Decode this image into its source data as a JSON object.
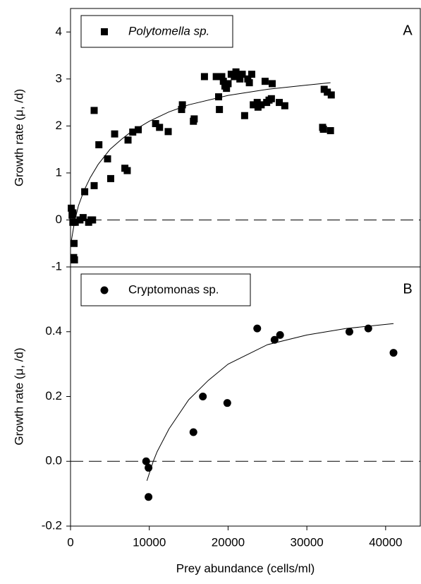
{
  "chart_data": [
    {
      "type": "scatter",
      "panel_label": "A",
      "ylabel": "Growth rate (μ, /d)",
      "xlim": [
        0,
        44400
      ],
      "ylim": [
        -1,
        4.5
      ],
      "yticks": [
        -1,
        0,
        1,
        2,
        3,
        4
      ],
      "reference_line": 0,
      "series": [
        {
          "name": "Polytomella sp.",
          "color": "#000000",
          "marker": "square",
          "x": [
            100,
            200,
            300,
            300,
            400,
            500,
            450,
            600,
            1200,
            1600,
            1800,
            2300,
            2600,
            2800,
            3000,
            3000,
            3600,
            4700,
            5100,
            5600,
            6900,
            7200,
            7300,
            7900,
            8600,
            10800,
            11300,
            12400,
            14100,
            14200,
            15600,
            15700,
            17000,
            18500,
            18800,
            18900,
            19200,
            19400,
            19600,
            19800,
            20000,
            20400,
            20800,
            21000,
            21300,
            21500,
            21800,
            22100,
            22500,
            22700,
            23000,
            23200,
            23700,
            23800,
            24200,
            24700,
            24900,
            25200,
            25500,
            25600,
            26500,
            27200,
            32000,
            32100,
            32200,
            32600,
            33000,
            33100
          ],
          "values": [
            0.25,
            0.1,
            0.15,
            -0.05,
            -0.8,
            -0.85,
            -0.5,
            -0.05,
            0,
            0.05,
            0.6,
            -0.05,
            0,
            0,
            2.33,
            0.73,
            1.6,
            1.3,
            0.88,
            1.83,
            1.1,
            1.05,
            1.7,
            1.87,
            1.92,
            2.05,
            1.97,
            1.88,
            2.35,
            2.45,
            2.1,
            2.15,
            3.05,
            3.05,
            2.62,
            2.35,
            3.05,
            2.95,
            2.85,
            2.8,
            2.9,
            3.1,
            3.05,
            3.15,
            3.05,
            3.0,
            3.1,
            2.22,
            3.0,
            2.92,
            3.1,
            2.45,
            2.5,
            2.4,
            2.45,
            2.95,
            2.5,
            2.55,
            2.58,
            2.9,
            2.5,
            2.43,
            1.97,
            1.93,
            2.78,
            2.72,
            1.9,
            2.66
          ]
        }
      ],
      "fit": {
        "x": [
          0,
          500,
          1000,
          1700,
          2500,
          3500,
          5000,
          6500,
          7500,
          10000,
          12500,
          15000,
          20000,
          25000,
          30000,
          33000
        ],
        "values": [
          -0.55,
          -0.05,
          0.3,
          0.62,
          0.9,
          1.18,
          1.5,
          1.72,
          1.85,
          2.1,
          2.3,
          2.45,
          2.65,
          2.78,
          2.87,
          2.92
        ]
      }
    },
    {
      "type": "scatter",
      "panel_label": "B",
      "ylabel": "Growth rate (μ, /d)",
      "xlabel": "Prey abundance (cells/ml)",
      "xlim": [
        0,
        44400
      ],
      "ylim": [
        -0.2,
        0.6
      ],
      "yticks": [
        -0.2,
        {
          "value": 0,
          "label": "0.0"
        },
        0.2,
        0.4
      ],
      "reference_line": 0,
      "xticks": [
        0,
        10000,
        20000,
        30000,
        40000
      ],
      "series": [
        {
          "name": "Cryptomonas sp.",
          "color": "#000000",
          "marker": "circle",
          "x": [
            9600,
            9900,
            9900,
            15600,
            16800,
            19900,
            23700,
            25900,
            26600,
            35400,
            37800,
            41000
          ],
          "values": [
            0,
            -0.02,
            -0.11,
            0.09,
            0.2,
            0.18,
            0.41,
            0.375,
            0.39,
            0.4,
            0.41,
            0.335
          ]
        }
      ],
      "fit": {
        "x": [
          9700,
          10500,
          11000,
          12500,
          15000,
          17500,
          20000,
          25000,
          30000,
          35000,
          41000
        ],
        "values": [
          -0.06,
          0,
          0.03,
          0.1,
          0.19,
          0.25,
          0.3,
          0.36,
          0.39,
          0.41,
          0.425
        ]
      }
    }
  ]
}
